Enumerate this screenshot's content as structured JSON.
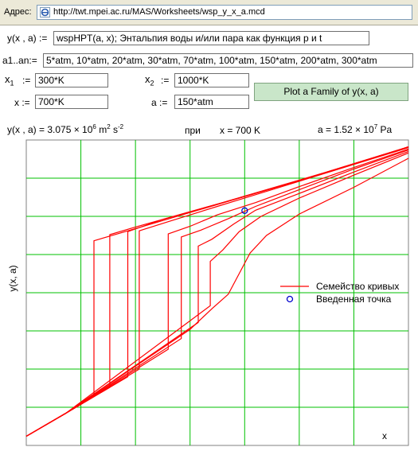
{
  "address_bar": {
    "label": "Адрес:",
    "url": "http://twt.mpei.ac.ru/MAS/Worksheets/wsp_y_x_a.mcd"
  },
  "form": {
    "y_label": "y(x , a) :=",
    "y_value": "wspHPT(a, x);  Энтальпия воды и/или пара как функция p и t",
    "a_list_label": "a1..an:=",
    "a_list_value": "5*atm, 10*atm, 20*atm, 30*atm, 70*atm, 100*atm, 150*atm, 200*atm, 300*atm",
    "x1_label_main": "x",
    "x1_label_sub": "1",
    "x1_assign": ":=",
    "x1_value": "300*K",
    "x2_label_main": "x",
    "x2_label_sub": "2",
    "x2_assign": ":=",
    "x2_value": "1000*K",
    "x_label": "x :=",
    "x_value": "700*K",
    "a_label": "a :=",
    "a_value": "150*atm",
    "plot_button": "Plot a Family of y(x, a)"
  },
  "result": {
    "y_text": "y(x , a) = 3.075 × 10",
    "y_exp": "6",
    "y_unit": " m",
    "y_unit_exp1": "2",
    "y_unit_s": " s",
    "y_unit_exp2": "-2",
    "at_text": "при",
    "x_text": "x = 700 K",
    "a_text": "a = 1.52 × 10",
    "a_exp": "7",
    "a_unit": " Pa"
  },
  "chart_data": {
    "type": "line",
    "xlabel": "x",
    "ylabel": "y(x, a)",
    "xlim": [
      300,
      1000
    ],
    "ylim": [
      0,
      4000000
    ],
    "grid": true,
    "legend_position": "right-middle",
    "legend": [
      {
        "label": "Семейство кривых",
        "kind": "line",
        "color": "#ff0000"
      },
      {
        "label": "Введенная точка",
        "kind": "marker",
        "color": "#0000cc"
      }
    ],
    "marker_point": {
      "x": 700,
      "y": 3075000
    },
    "series": [
      {
        "a": "5 atm",
        "x": [
          300,
          372,
          424,
          424,
          500,
          600,
          700,
          800,
          900,
          1000
        ],
        "y": [
          120000,
          420000,
          640000,
          2680000,
          2840000,
          3050000,
          3260000,
          3470000,
          3690000,
          3910000
        ]
      },
      {
        "a": "10 atm",
        "x": [
          300,
          372,
          453,
          453,
          500,
          600,
          700,
          800,
          900,
          1000
        ],
        "y": [
          120000,
          420000,
          760000,
          2760000,
          2860000,
          3060000,
          3260000,
          3470000,
          3690000,
          3910000
        ]
      },
      {
        "a": "20 atm",
        "x": [
          300,
          372,
          486,
          486,
          550,
          650,
          750,
          850,
          950,
          1000
        ],
        "y": [
          120000,
          420000,
          900000,
          2800000,
          2960000,
          3160000,
          3370000,
          3580000,
          3800000,
          3910000
        ]
      },
      {
        "a": "30 atm",
        "x": [
          300,
          372,
          507,
          507,
          560,
          650,
          750,
          850,
          950,
          1000
        ],
        "y": [
          120000,
          420000,
          1000000,
          2810000,
          2930000,
          3130000,
          3350000,
          3570000,
          3790000,
          3900000
        ]
      },
      {
        "a": "70 atm",
        "x": [
          300,
          372,
          560,
          560,
          600,
          650,
          720,
          800,
          900,
          1000
        ],
        "y": [
          120000,
          420000,
          1260000,
          2770000,
          2870000,
          3020000,
          3180000,
          3390000,
          3640000,
          3880000
        ]
      },
      {
        "a": "100 atm",
        "x": [
          300,
          372,
          584,
          584,
          620,
          670,
          720,
          800,
          900,
          1000
        ],
        "y": [
          120000,
          420000,
          1400000,
          2730000,
          2820000,
          2970000,
          3130000,
          3350000,
          3620000,
          3870000
        ]
      },
      {
        "a": "150 atm",
        "x": [
          300,
          372,
          615,
          615,
          640,
          680,
          720,
          800,
          900,
          1000
        ],
        "y": [
          120000,
          420000,
          1610000,
          2610000,
          2700000,
          2900000,
          3080000,
          3300000,
          3580000,
          3850000
        ]
      },
      {
        "a": "200 atm",
        "x": [
          300,
          372,
          637,
          637,
          660,
          690,
          730,
          800,
          900,
          1000
        ],
        "y": [
          120000,
          420000,
          1830000,
          2410000,
          2560000,
          2800000,
          3000000,
          3240000,
          3540000,
          3830000
        ]
      },
      {
        "a": "300 atm",
        "x": [
          300,
          372,
          600,
          640,
          670,
          690,
          710,
          740,
          800,
          900,
          1000
        ],
        "y": [
          120000,
          420000,
          1520000,
          1790000,
          1980000,
          2250000,
          2520000,
          2750000,
          3030000,
          3380000,
          3760000
        ]
      }
    ]
  }
}
